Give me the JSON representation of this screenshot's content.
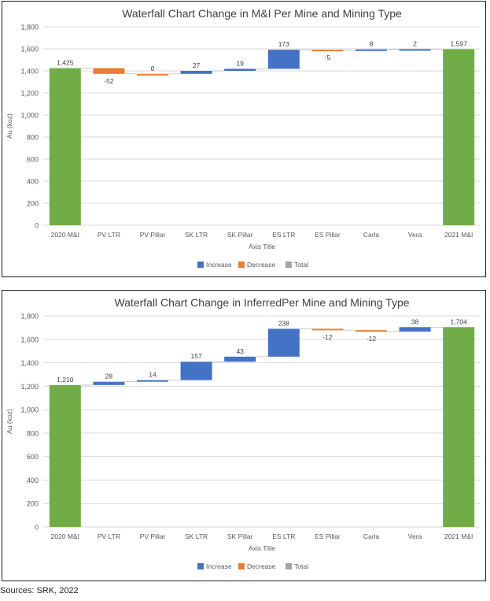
{
  "chart_data": [
    {
      "type": "bar",
      "title": "Waterfall Chart Change in M&I Per Mine and Mining Type",
      "ylabel": "Au (koz)",
      "xlabel": "Axis Title",
      "ylim": [
        0,
        1800
      ],
      "ytick_step": 200,
      "y_tick_labels": [
        "0",
        "200",
        "400",
        "600",
        "800",
        "1,000",
        "1,200",
        "1,400",
        "1,600",
        "1,800"
      ],
      "grid": true,
      "legend_placement": "bottom",
      "categories": [
        "2020 M&I",
        "PV LTR",
        "PV Pillar",
        "SK LTR",
        "SK Pillar",
        "ES LTR",
        "ES Pillar",
        "Carla",
        "Vera",
        "2021 M&I"
      ],
      "values": [
        1425,
        -52,
        0,
        27,
        19,
        173,
        -5,
        8,
        2,
        1597
      ],
      "kinds": [
        "total",
        "decrease",
        "decrease",
        "increase",
        "increase",
        "increase",
        "decrease",
        "increase",
        "increase",
        "total"
      ],
      "data_labels": [
        "1,425",
        "-52",
        "0",
        "27",
        "19",
        "173",
        "-5",
        "8",
        "2",
        "1,597"
      ]
    },
    {
      "type": "bar",
      "title": "Waterfall Chart Change in InferredPer Mine and Mining Type",
      "ylabel": "Au (koz)",
      "xlabel": "Axis Title",
      "ylim": [
        0,
        1800
      ],
      "ytick_step": 200,
      "y_tick_labels": [
        "0",
        "200",
        "400",
        "600",
        "800",
        "1,000",
        "1,200",
        "1,400",
        "1,600",
        "1,800"
      ],
      "grid": true,
      "legend_placement": "bottom",
      "categories": [
        "2020 M&I",
        "PV LTR",
        "PV Pillar",
        "SK LTR",
        "SK Pillar",
        "ES LTR",
        "ES Pillar",
        "Carla",
        "Vera",
        "2021 M&I"
      ],
      "values": [
        1210,
        28,
        14,
        157,
        43,
        238,
        -12,
        -12,
        38,
        1704
      ],
      "kinds": [
        "total",
        "increase",
        "increase",
        "increase",
        "increase",
        "increase",
        "decrease",
        "decrease",
        "increase",
        "total"
      ],
      "data_labels": [
        "1,210",
        "28",
        "14",
        "157",
        "43",
        "238",
        "-12",
        "-12",
        "38",
        "1,704"
      ]
    }
  ],
  "legend": {
    "increase": "Increase",
    "decrease": "Decrease",
    "total": "Total"
  },
  "colors": {
    "increase": "#4472c4",
    "decrease": "#ed7d31",
    "total": "#70ad47",
    "legend_total": "#a5a5a5",
    "grid": "#d9d9d9",
    "axis_text": "#595959"
  },
  "source_note": "Sources: SRK, 2022"
}
